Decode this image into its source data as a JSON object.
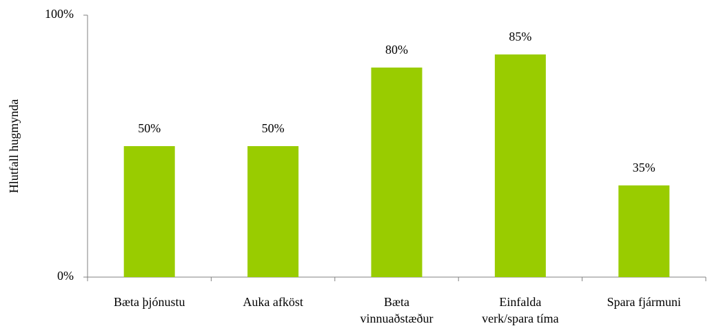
{
  "chart_data": {
    "type": "bar",
    "y_label": "Hlutfall hugmynda",
    "categories": [
      "Bæta þjónustu",
      "Auka afköst",
      "Bæta\nvinnuaðstæður",
      "Einfalda\nverk/spara tíma",
      "Spara fjármuni"
    ],
    "values": [
      50,
      50,
      80,
      85,
      35
    ],
    "value_labels": [
      "50%",
      "50%",
      "80%",
      "85%",
      "35%"
    ],
    "color": "#99cc00",
    "ylim": [
      0,
      100
    ],
    "yticks": [
      {
        "value": 0,
        "label": "0%"
      },
      {
        "value": 100,
        "label": "100%"
      }
    ],
    "grid": false
  }
}
